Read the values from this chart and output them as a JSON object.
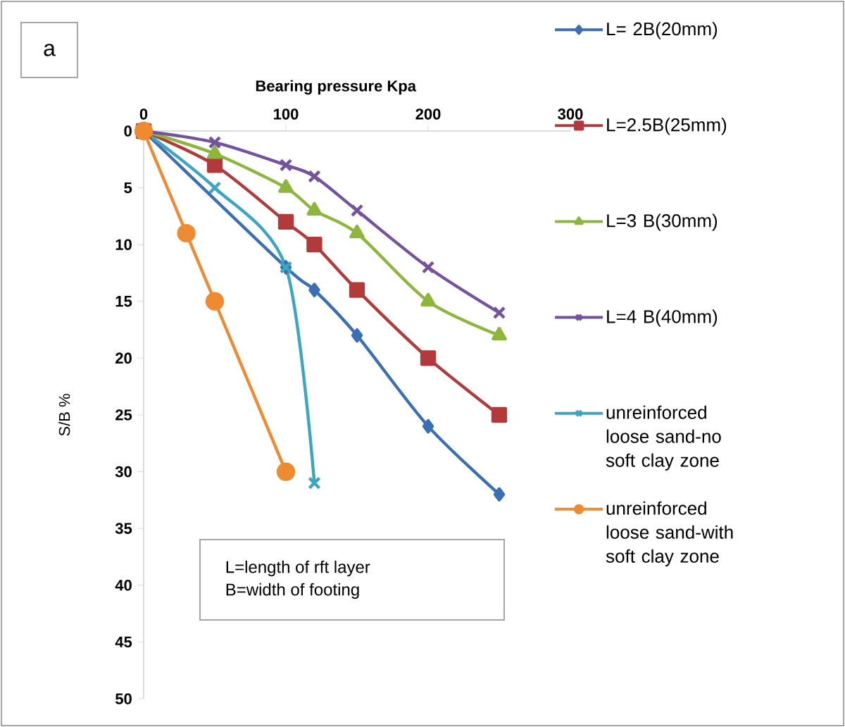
{
  "chart_data": {
    "type": "line",
    "xlabel": "Bearing pressure Kpa",
    "ylabel": "S/B %",
    "xlim": [
      0,
      300
    ],
    "xticks": [
      0,
      100,
      200,
      300
    ],
    "ylim": [
      50,
      0
    ],
    "yticks": [
      0,
      5,
      10,
      15,
      20,
      25,
      30,
      35,
      40,
      45,
      50
    ],
    "grid": false,
    "legend": "right",
    "annotations": [
      "a",
      "L=length of rft layer\nB=width of footing"
    ],
    "series": [
      {
        "name": "L= 2B(20mm)",
        "color": "#3a6fb5",
        "marker": "diamond",
        "x": [
          0,
          50,
          100,
          120,
          150,
          200,
          250
        ],
        "values": [
          0,
          null,
          12,
          14,
          18,
          26,
          32
        ]
      },
      {
        "name": "L=2.5B(25mm)",
        "color": "#b23a3a",
        "marker": "square",
        "x": [
          0,
          50,
          100,
          120,
          150,
          200,
          250
        ],
        "values": [
          0,
          3,
          8,
          10,
          14,
          20,
          25
        ]
      },
      {
        "name": "L=3 B(30mm)",
        "color": "#8cb63c",
        "marker": "triangle",
        "x": [
          0,
          50,
          100,
          120,
          150,
          200,
          250
        ],
        "values": [
          0,
          2,
          5,
          7,
          9,
          15,
          18
        ]
      },
      {
        "name": "L=4 B(40mm)",
        "color": "#7552a0",
        "marker": "cross",
        "x": [
          0,
          50,
          100,
          120,
          150,
          200,
          250
        ],
        "values": [
          0,
          1,
          3,
          4,
          7,
          12,
          16
        ]
      },
      {
        "name": "unreinforced loose sand-no soft clay zone",
        "color": "#3aa6c4",
        "marker": "cross",
        "x": [
          0,
          50,
          100,
          120
        ],
        "values": [
          0,
          5,
          12,
          31
        ]
      },
      {
        "name": "unreinforced loose sand-with soft clay zone",
        "color": "#f08a30",
        "marker": "circle",
        "x": [
          0,
          30,
          50,
          100
        ],
        "values": [
          0,
          9,
          15,
          30
        ]
      }
    ]
  }
}
